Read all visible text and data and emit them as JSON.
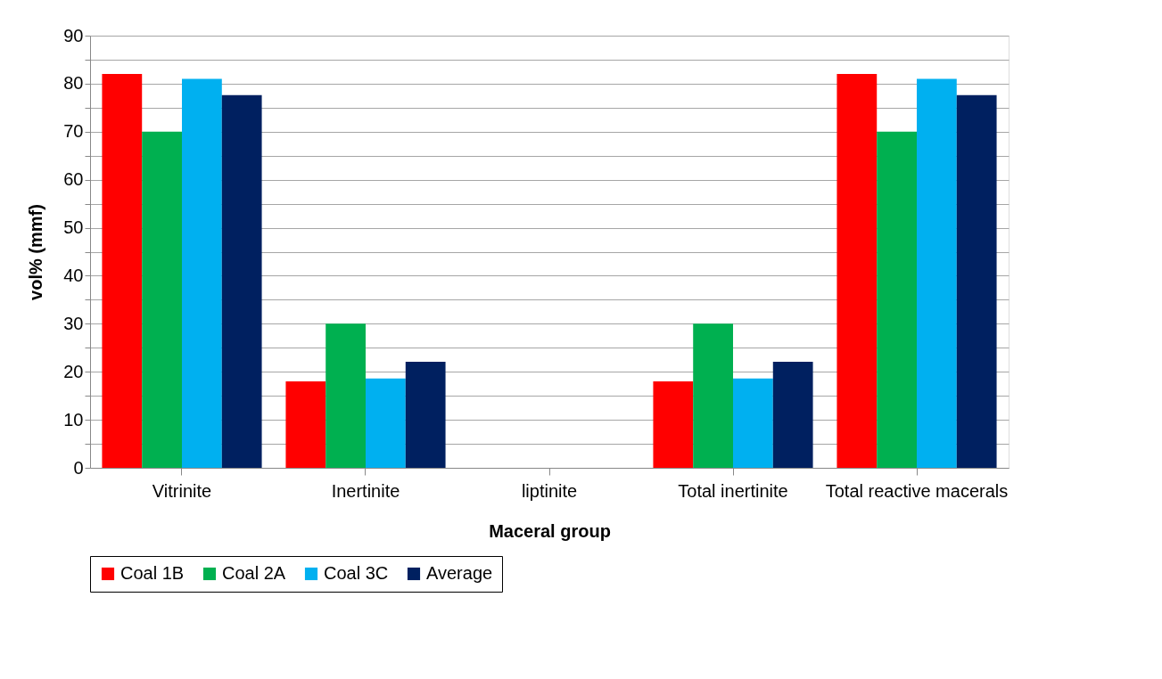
{
  "chart_data": {
    "type": "bar",
    "xlabel": "Maceral group",
    "ylabel": "vol% (mmf)",
    "categories": [
      "Vitrinite",
      "Inertinite",
      "liptinite",
      "Total inertinite",
      "Total reactive macerals"
    ],
    "series": [
      {
        "name": "Coal 1B",
        "color": "#ff0000",
        "values": [
          82,
          18,
          0,
          18,
          82
        ]
      },
      {
        "name": "Coal 2A",
        "color": "#00b050",
        "values": [
          70,
          30,
          0,
          30,
          70
        ]
      },
      {
        "name": "Coal 3C",
        "color": "#00b0f0",
        "values": [
          81,
          18.6,
          0,
          18.6,
          81
        ]
      },
      {
        "name": "Average",
        "color": "#002060",
        "values": [
          77.6,
          22.1,
          0,
          22.1,
          77.6
        ]
      }
    ],
    "ylim": [
      0,
      90
    ],
    "yticks": [
      0,
      {
        "value": 5,
        "label": null
      },
      10,
      {
        "value": 15,
        "label": null
      },
      20,
      {
        "value": 25,
        "label": null
      },
      30,
      {
        "value": 35,
        "label": null
      },
      40,
      {
        "value": 45,
        "label": null
      },
      50,
      {
        "value": 55,
        "label": null
      },
      60,
      {
        "value": 65,
        "label": null
      },
      70,
      {
        "value": 75,
        "label": null
      },
      80,
      {
        "value": 85,
        "label": null
      },
      90
    ],
    "grid": "y",
    "legend": "bottom"
  }
}
